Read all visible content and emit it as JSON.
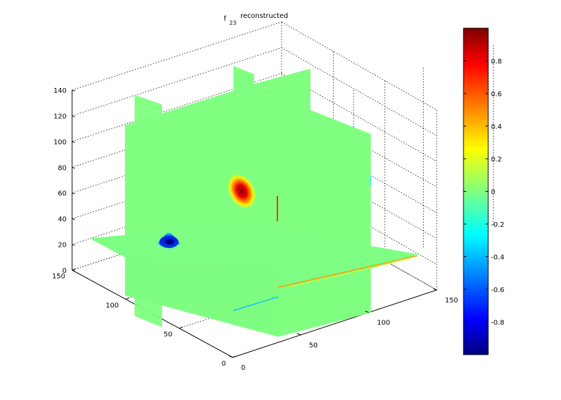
{
  "chart_data": {
    "type": "slice-3d",
    "title": "f",
    "title_subscript": "23",
    "title_suffix": "reconstructed",
    "x_ticks": [
      "0",
      "50",
      "100",
      "150"
    ],
    "y_ticks": [
      "0",
      "50",
      "100",
      "150"
    ],
    "z_ticks": [
      "0",
      "20",
      "40",
      "60",
      "80",
      "100",
      "120",
      "140"
    ],
    "xlim": [
      0,
      150
    ],
    "ylim": [
      0,
      150
    ],
    "zlim": [
      0,
      140
    ],
    "grid": true,
    "colormap": "jet",
    "colorbar": {
      "range": [
        -1,
        1
      ],
      "ticks": [
        "-0.8",
        "-0.6",
        "-0.4",
        "-0.2",
        "0",
        "0.2",
        "0.4",
        "0.6",
        "0.8"
      ],
      "tick_values": [
        -0.8,
        -0.6,
        -0.4,
        -0.2,
        0,
        0.2,
        0.4,
        0.6,
        0.8
      ]
    },
    "features": [
      {
        "name": "positive blob",
        "value": 1.0,
        "color": "#c00000"
      },
      {
        "name": "negative blob",
        "value": -1.0,
        "color": "#00007f"
      }
    ],
    "background_value": 0.0,
    "background_color": "#80ff80"
  }
}
